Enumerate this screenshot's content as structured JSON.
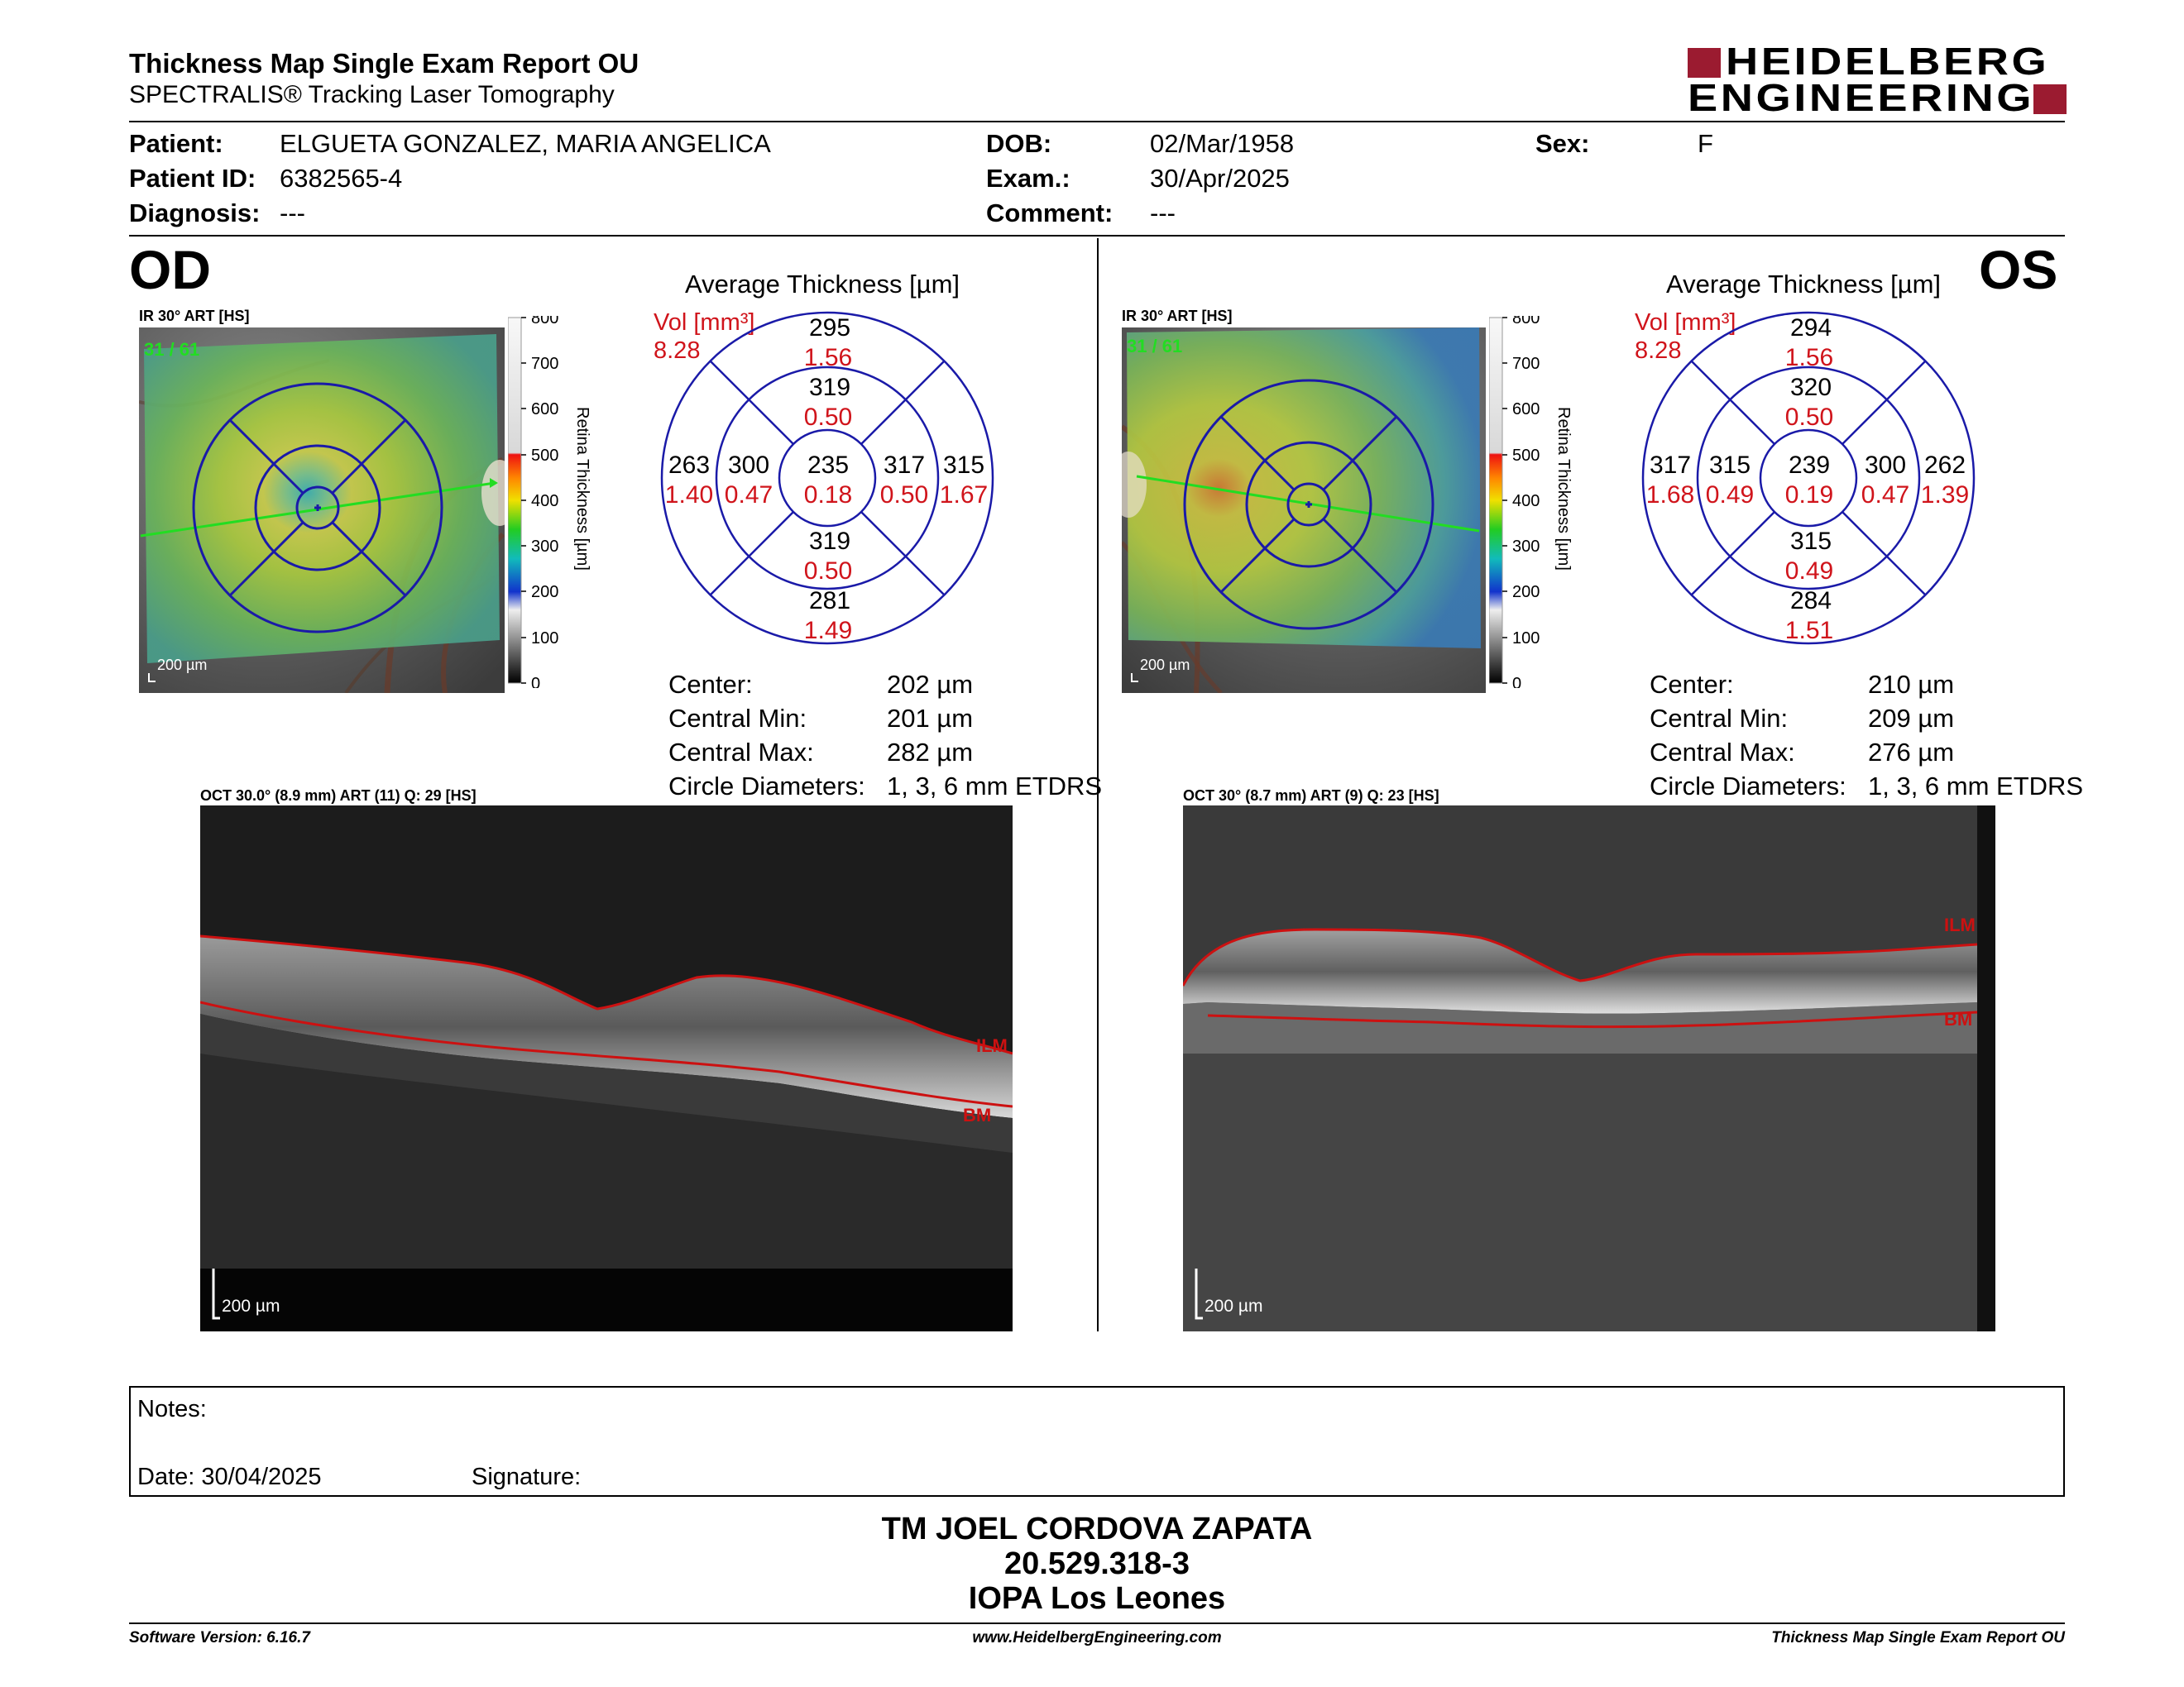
{
  "header": {
    "title": "Thickness Map Single Exam Report OU",
    "subtitle": "SPECTRALIS® Tracking Laser Tomography",
    "logo_line1": "HEIDELBERG",
    "logo_line2": "ENGINEERING"
  },
  "patient": {
    "patient_label": "Patient:",
    "patient_value": "ELGUETA GONZALEZ, MARIA ANGELICA",
    "id_label": "Patient ID:",
    "id_value": "6382565-4",
    "diagnosis_label": "Diagnosis:",
    "diagnosis_value": "---",
    "dob_label": "DOB:",
    "dob_value": "02/Mar/1958",
    "exam_label": "Exam.:",
    "exam_value": "30/Apr/2025",
    "comment_label": "Comment:",
    "comment_value": "---",
    "sex_label": "Sex:",
    "sex_value": "F"
  },
  "colors": {
    "grid_blue": "#1a1aa8",
    "volume_red": "#d0141b",
    "logo_red": "#9b1b30",
    "ilm_red": "#cc1111"
  },
  "colorbar": {
    "ticks": [
      "800",
      "700",
      "600",
      "500",
      "400",
      "300",
      "200",
      "100",
      "0"
    ],
    "label": "Retina Thickness [µm]"
  },
  "od": {
    "eye_label": "OD",
    "ir_label": "IR 30° ART [HS]",
    "ir_counter": "31 / 61",
    "scale_ir": "200 µm",
    "avg_title": "Average Thickness [µm]",
    "vol_label": "Vol [mm³]",
    "vol_value": "8.28",
    "sectors": {
      "outer_top": {
        "t": "295",
        "v": "1.56"
      },
      "inner_top": {
        "t": "319",
        "v": "0.50"
      },
      "outer_left": {
        "t": "263",
        "v": "1.40"
      },
      "inner_left": {
        "t": "300",
        "v": "0.47"
      },
      "center": {
        "t": "235",
        "v": "0.18"
      },
      "inner_right": {
        "t": "317",
        "v": "0.50"
      },
      "outer_right": {
        "t": "315",
        "v": "1.67"
      },
      "inner_bottom": {
        "t": "319",
        "v": "0.50"
      },
      "outer_bottom": {
        "t": "281",
        "v": "1.49"
      }
    },
    "stats": [
      {
        "label": "Center:",
        "value": "202 µm"
      },
      {
        "label": "Central Min:",
        "value": "201 µm"
      },
      {
        "label": "Central Max:",
        "value": "282 µm"
      },
      {
        "label": "Circle Diameters:",
        "value": "1, 3, 6 mm ETDRS"
      }
    ],
    "oct_label": "OCT 30.0° (8.9 mm) ART (11) Q: 29 [HS]",
    "scale_oct": "200 µm",
    "ilm": "ILM",
    "bm": "BM"
  },
  "os": {
    "eye_label": "OS",
    "ir_label": "IR 30° ART [HS]",
    "ir_counter": "31 / 61",
    "scale_ir": "200 µm",
    "avg_title": "Average Thickness [µm]",
    "vol_label": "Vol [mm³]",
    "vol_value": "8.28",
    "sectors": {
      "outer_top": {
        "t": "294",
        "v": "1.56"
      },
      "inner_top": {
        "t": "320",
        "v": "0.50"
      },
      "outer_left": {
        "t": "317",
        "v": "1.68"
      },
      "inner_left": {
        "t": "315",
        "v": "0.49"
      },
      "center": {
        "t": "239",
        "v": "0.19"
      },
      "inner_right": {
        "t": "300",
        "v": "0.47"
      },
      "outer_right": {
        "t": "262",
        "v": "1.39"
      },
      "inner_bottom": {
        "t": "315",
        "v": "0.49"
      },
      "outer_bottom": {
        "t": "284",
        "v": "1.51"
      }
    },
    "stats": [
      {
        "label": "Center:",
        "value": "210 µm"
      },
      {
        "label": "Central Min:",
        "value": "209 µm"
      },
      {
        "label": "Central Max:",
        "value": "276 µm"
      },
      {
        "label": "Circle Diameters:",
        "value": "1, 3, 6 mm ETDRS"
      }
    ],
    "oct_label": "OCT 30° (8.7 mm) ART (9) Q: 23 [HS]",
    "scale_oct": "200 µm",
    "ilm": "ILM",
    "bm": "BM"
  },
  "notes": {
    "notes_label": "Notes:",
    "date_label": "Date: 30/04/2025",
    "signature_label": "Signature:"
  },
  "stamp": {
    "line1": "TM JOEL CORDOVA ZAPATA",
    "line2": "20.529.318-3",
    "line3": "IOPA Los Leones"
  },
  "footer": {
    "software": "Software Version: 6.16.7",
    "website": "www.HeidelbergEngineering.com",
    "report": "Thickness Map Single Exam Report OU"
  }
}
